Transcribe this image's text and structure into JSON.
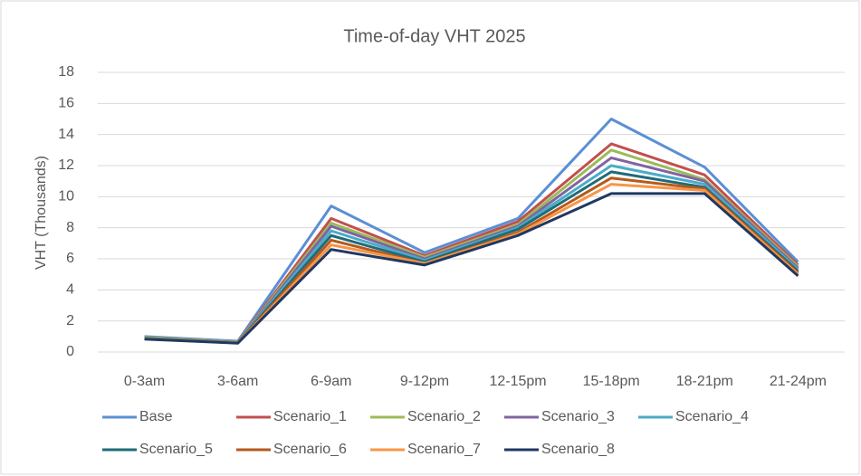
{
  "chart_data": {
    "type": "line",
    "title": "Time-of-day VHT 2025",
    "y_label": "VHT (Thousands)",
    "categories": [
      "0-3am",
      "3-6am",
      "6-9am",
      "9-12pm",
      "12-15pm",
      "15-18pm",
      "18-21pm",
      "21-24pm"
    ],
    "series": [
      {
        "name": "Base",
        "color": "#5b8fd4",
        "values": [
          1.0,
          0.7,
          9.4,
          6.4,
          8.6,
          15.0,
          11.9,
          5.8
        ]
      },
      {
        "name": "Scenario_1",
        "color": "#c0504d",
        "values": [
          0.95,
          0.65,
          8.6,
          6.2,
          8.4,
          13.4,
          11.4,
          5.6
        ]
      },
      {
        "name": "Scenario_2",
        "color": "#9bbb59",
        "values": [
          0.95,
          0.65,
          8.3,
          6.1,
          8.2,
          13.0,
          11.1,
          5.5
        ]
      },
      {
        "name": "Scenario_3",
        "color": "#8064a2",
        "values": [
          0.9,
          0.62,
          8.1,
          6.0,
          8.1,
          12.5,
          11.0,
          5.4
        ]
      },
      {
        "name": "Scenario_4",
        "color": "#4bacc6",
        "values": [
          0.9,
          0.62,
          7.8,
          5.9,
          8.0,
          12.0,
          10.8,
          5.3
        ]
      },
      {
        "name": "Scenario_5",
        "color": "#1f6b7a",
        "values": [
          0.88,
          0.6,
          7.5,
          5.8,
          7.9,
          11.6,
          10.6,
          5.2
        ]
      },
      {
        "name": "Scenario_6",
        "color": "#b55a1e",
        "values": [
          0.86,
          0.6,
          7.2,
          5.7,
          7.7,
          11.2,
          10.5,
          5.1
        ]
      },
      {
        "name": "Scenario_7",
        "color": "#f79646",
        "values": [
          0.85,
          0.58,
          6.9,
          5.7,
          7.6,
          10.8,
          10.4,
          5.0
        ]
      },
      {
        "name": "Scenario_8",
        "color": "#1f3864",
        "values": [
          0.83,
          0.57,
          6.6,
          5.6,
          7.5,
          10.2,
          10.2,
          4.9
        ]
      }
    ],
    "ylim": [
      0,
      18
    ],
    "yticks": [
      0,
      2,
      4,
      6,
      8,
      10,
      12,
      14,
      16,
      18
    ],
    "grid": true,
    "legend": "bottom"
  }
}
